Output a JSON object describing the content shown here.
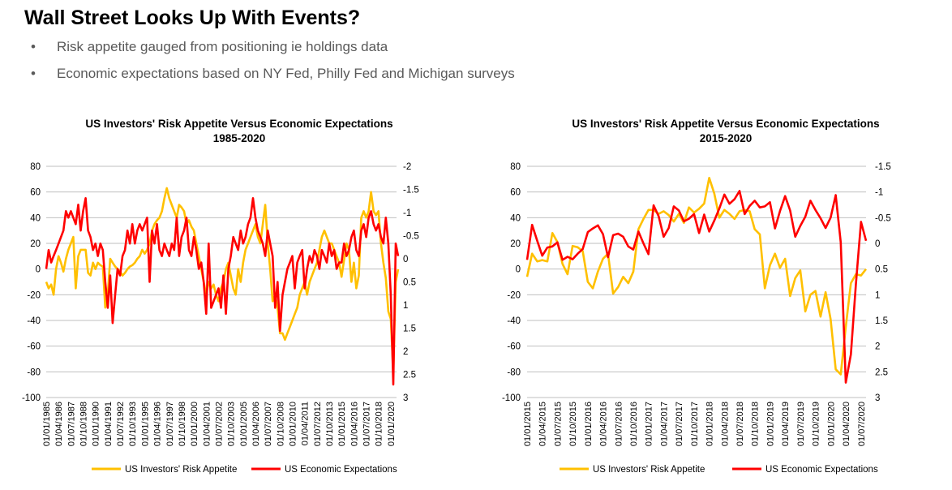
{
  "slide": {
    "title": "Wall Street Looks Up With Events?",
    "bullets": [
      "Risk appetite gauged from positioning ie holdings data",
      "Economic expectations based on NY Fed, Philly Fed and Michigan surveys"
    ],
    "bullet_glyph": "•"
  },
  "colors": {
    "risk_appetite": "#FFC000",
    "economic_expectations": "#FF0000",
    "grid": "#BFBFBF"
  },
  "chart_data": [
    {
      "type": "line",
      "title": "US Investors' Risk Appetite Versus Economic Expectations",
      "subtitle": "1985-2020",
      "grid": true,
      "legend_position": "bottom",
      "y_left": {
        "range": [
          -100,
          80
        ],
        "ticks": [
          "80",
          "60",
          "40",
          "20",
          "0",
          "-20",
          "-40",
          "-60",
          "-80",
          "-100"
        ]
      },
      "y_right": {
        "range": [
          -2,
          3
        ],
        "inverted": true,
        "ticks": [
          "-2",
          "-1.5",
          "-1",
          "-0.5",
          "0",
          "0.5",
          "1",
          "1.5",
          "2",
          "2.5",
          "3"
        ]
      },
      "x_range": [
        "1985-01",
        "2020-08"
      ],
      "x_tick_labels": [
        "01/01/1985",
        "01/04/1986",
        "01/07/1987",
        "01/10/1988",
        "01/01/1990",
        "01/04/1991",
        "01/07/1992",
        "01/10/1993",
        "01/01/1995",
        "01/04/1996",
        "01/07/1997",
        "01/10/1998",
        "01/01/2000",
        "01/04/2001",
        "01/07/2002",
        "01/10/2003",
        "01/01/2005",
        "01/04/2006",
        "01/07/2007",
        "01/10/2008",
        "01/01/2010",
        "01/04/2011",
        "01/07/2012",
        "01/10/2013",
        "01/01/2015",
        "01/04/2016",
        "01/07/2017",
        "01/10/2018",
        "01/01/2020"
      ],
      "x_first": "1985-01",
      "x_step_months": 3,
      "series": [
        {
          "name": "US Investors' Risk Appetite",
          "axis": "left",
          "values": [
            -10,
            -15,
            -12,
            -20,
            0,
            10,
            5,
            -2,
            8,
            15,
            20,
            25,
            -15,
            10,
            15,
            15,
            15,
            -3,
            -5,
            5,
            0,
            5,
            3,
            2,
            -30,
            -20,
            8,
            5,
            2,
            0,
            -2,
            -5,
            -3,
            0,
            2,
            3,
            5,
            8,
            10,
            15,
            12,
            15,
            20,
            30,
            35,
            38,
            40,
            45,
            55,
            63,
            55,
            50,
            45,
            40,
            50,
            48,
            45,
            35,
            38,
            33,
            30,
            20,
            10,
            0,
            -10,
            -20,
            -10,
            -15,
            -12,
            -20,
            -25,
            -15,
            -10,
            0,
            5,
            -5,
            -15,
            -20,
            0,
            -10,
            5,
            15,
            20,
            25,
            30,
            35,
            25,
            20,
            35,
            50,
            20,
            0,
            -25,
            -20,
            -30,
            -50,
            -50,
            -55,
            -50,
            -45,
            -40,
            -35,
            -30,
            -20,
            -15,
            -10,
            -20,
            -10,
            -5,
            0,
            5,
            15,
            25,
            30,
            25,
            20,
            20,
            15,
            10,
            5,
            -6,
            7,
            20,
            15,
            -10,
            5,
            -15,
            -5,
            40,
            45,
            40,
            45,
            60,
            45,
            42,
            45,
            20,
            5,
            -7,
            -33,
            -39,
            -80,
            -10,
            0
          ]
        },
        {
          "name": "US Economic Expectations",
          "axis": "right",
          "values": [
            0.22,
            -0.19,
            0.08,
            -0.06,
            -0.19,
            -0.33,
            -0.47,
            -0.61,
            -1.03,
            -0.89,
            -1.03,
            -0.89,
            -0.75,
            -1.17,
            -0.61,
            -1.03,
            -1.31,
            -0.61,
            -0.47,
            -0.19,
            -0.33,
            -0.06,
            -0.33,
            -0.19,
            0.5,
            1.06,
            0.36,
            1.39,
            0.78,
            0.22,
            0.36,
            -0.06,
            -0.19,
            -0.61,
            -0.33,
            -0.75,
            -0.33,
            -0.61,
            -0.75,
            -0.61,
            -0.75,
            -0.89,
            0.5,
            -0.61,
            -0.33,
            -0.75,
            -0.19,
            -0.06,
            -0.33,
            -0.19,
            -0.06,
            -0.33,
            -0.19,
            -0.89,
            -0.06,
            -0.47,
            -0.61,
            -0.89,
            -0.19,
            -0.06,
            -0.47,
            -0.19,
            0.22,
            0.08,
            0.5,
            1.19,
            -0.33,
            1.06,
            0.92,
            0.78,
            0.64,
            1.06,
            0.36,
            1.19,
            0.22,
            -0.06,
            -0.47,
            -0.33,
            -0.19,
            -0.61,
            -0.33,
            -0.47,
            -0.75,
            -0.89,
            -1.31,
            -0.89,
            -0.61,
            -0.47,
            -0.33,
            -0.06,
            -0.61,
            -0.33,
            -0.06,
            1.06,
            0.5,
            1.56,
            0.78,
            0.5,
            0.22,
            0.08,
            -0.06,
            0.64,
            0.08,
            -0.06,
            -0.19,
            0.64,
            0.22,
            -0.06,
            0.08,
            -0.19,
            -0.06,
            0.22,
            -0.19,
            -0.06,
            0.08,
            -0.33,
            -0.06,
            -0.19,
            0.22,
            0.08,
            0.08,
            -0.33,
            -0.06,
            -0.19,
            -0.47,
            -0.61,
            -0.19,
            -0.06,
            -0.61,
            -0.75,
            -0.47,
            -0.89,
            -1.03,
            -0.75,
            -0.61,
            -0.75,
            -0.47,
            -0.33,
            -0.89,
            -0.33,
            0.78,
            2.72,
            -0.33,
            -0.06
          ]
        }
      ]
    },
    {
      "type": "line",
      "title": "US Investors' Risk Appetite Versus Economic Expectations",
      "subtitle": "2015-2020",
      "grid": true,
      "legend_position": "bottom",
      "y_left": {
        "range": [
          -100,
          80
        ],
        "ticks": [
          "80",
          "60",
          "40",
          "20",
          "0",
          "-20",
          "-40",
          "-60",
          "-80",
          "-100"
        ]
      },
      "y_right": {
        "range": [
          -1.5,
          3
        ],
        "inverted": true,
        "ticks": [
          "-1.5",
          "-1",
          "-0.5",
          "0",
          "0.5",
          "1",
          "1.5",
          "2",
          "2.5",
          "3"
        ]
      },
      "x_range": [
        "2015-01",
        "2020-08"
      ],
      "x_tick_labels": [
        "01/01/2015",
        "01/04/2015",
        "01/07/2015",
        "01/10/2015",
        "01/01/2016",
        "01/04/2016",
        "01/07/2016",
        "01/10/2016",
        "01/01/2017",
        "01/04/2017",
        "01/07/2017",
        "01/10/2017",
        "01/01/2018",
        "01/04/2018",
        "01/07/2018",
        "01/10/2018",
        "01/01/2019",
        "01/04/2019",
        "01/07/2019",
        "01/10/2019",
        "01/01/2020",
        "01/04/2020",
        "01/07/2020"
      ],
      "x_first": "2015-01",
      "x_step_months": 1,
      "series": [
        {
          "name": "US Investors' Risk Appetite",
          "axis": "left",
          "values": [
            -6,
            12,
            6,
            7,
            6,
            28,
            21,
            4,
            -4,
            18,
            17,
            14,
            -10,
            -15,
            -2,
            8,
            12,
            -19,
            -14,
            -6,
            -11,
            -2,
            31,
            39,
            46,
            46,
            43,
            45,
            42,
            37,
            43,
            36,
            48,
            44,
            47,
            51,
            71,
            59,
            40,
            46,
            43,
            39,
            45,
            46,
            45,
            31,
            27,
            -15,
            3,
            12,
            1,
            8,
            -21,
            -7,
            -1,
            -33,
            -20,
            -17,
            -37,
            -18,
            -39,
            -78,
            -82,
            -45,
            -11,
            -4,
            -5,
            0
          ]
        },
        {
          "name": "US Economic Expectations",
          "axis": "right",
          "values": [
            0.32,
            -0.36,
            -0.05,
            0.24,
            0.08,
            0.06,
            -0.02,
            0.32,
            0.26,
            0.31,
            0.2,
            0.11,
            -0.22,
            -0.29,
            -0.35,
            -0.18,
            0.27,
            -0.16,
            -0.19,
            -0.13,
            0.06,
            0.12,
            -0.23,
            0.0,
            0.21,
            -0.74,
            -0.53,
            -0.13,
            -0.3,
            -0.72,
            -0.64,
            -0.43,
            -0.48,
            -0.57,
            -0.2,
            -0.56,
            -0.23,
            -0.44,
            -0.68,
            -0.95,
            -0.77,
            -0.86,
            -1.02,
            -0.57,
            -0.73,
            -0.83,
            -0.7,
            -0.72,
            -0.8,
            -0.29,
            -0.63,
            -0.92,
            -0.64,
            -0.13,
            -0.34,
            -0.52,
            -0.83,
            -0.65,
            -0.49,
            -0.3,
            -0.5,
            -0.94,
            -0.02,
            2.71,
            2.16,
            0.79,
            -0.42,
            -0.05
          ]
        }
      ]
    }
  ]
}
